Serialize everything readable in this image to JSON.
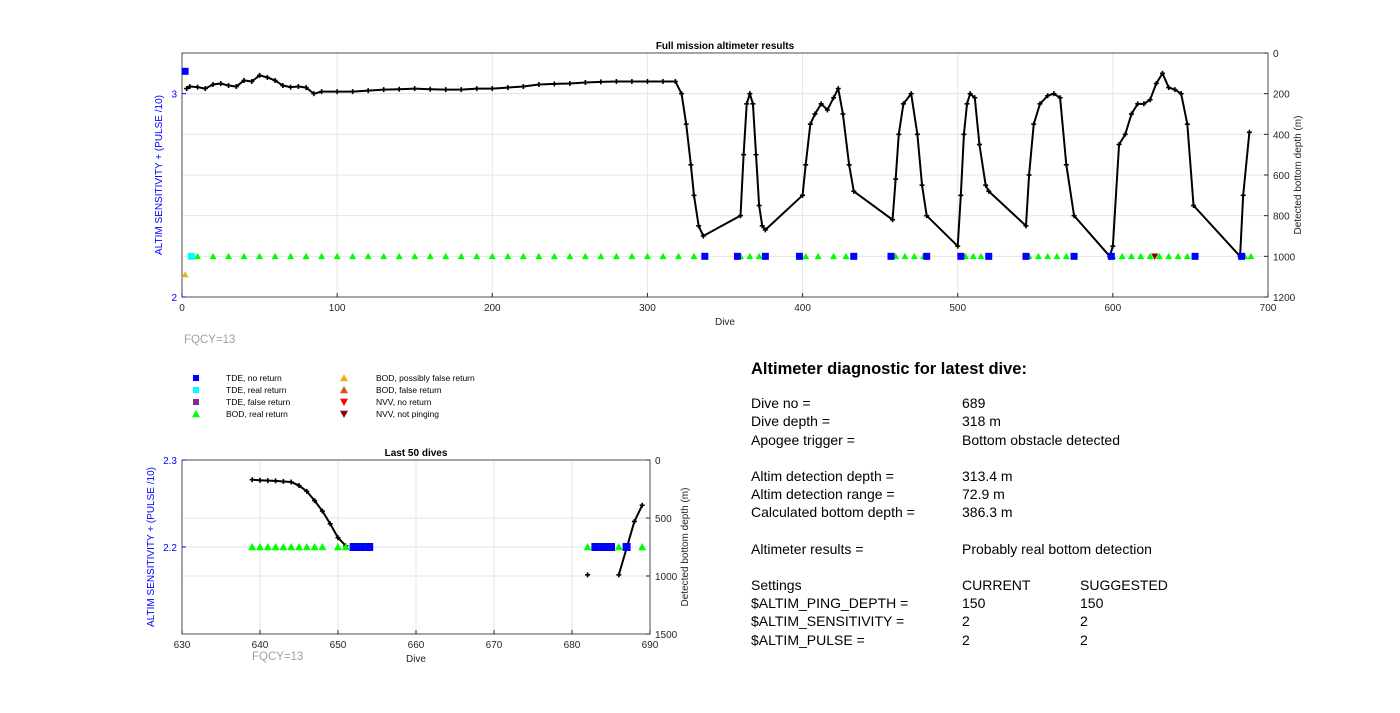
{
  "top": {
    "title": "Full mission altimeter results",
    "xlabel": "Dive",
    "ylabel_left": "ALTIM SENSITIVITY + (PULSE /10)",
    "ylabel_right": "Detected bottom depth (m)",
    "xticks": [
      "0",
      "100",
      "200",
      "300",
      "400",
      "500",
      "600",
      "700"
    ],
    "yticks_left": [
      "2",
      "3"
    ],
    "yticks_right": [
      "0",
      "200",
      "400",
      "600",
      "800",
      "1000",
      "1200"
    ],
    "note": "FQCY=13"
  },
  "legend": {
    "items": [
      {
        "label": "TDE, no return",
        "marker": "square",
        "color": "#0000ff"
      },
      {
        "label": "TDE, real return",
        "marker": "square",
        "color": "#00ffff"
      },
      {
        "label": "TDE, false return",
        "marker": "square",
        "color": "#7e2f8e"
      },
      {
        "label": "BOD, real return",
        "marker": "triangle-up",
        "color": "#00ff00"
      },
      {
        "label": "BOD, possibly false return",
        "marker": "triangle-up",
        "color": "#edb120"
      },
      {
        "label": "BOD, false return",
        "marker": "triangle-up",
        "color": "#d95319"
      },
      {
        "label": "NVV, no return",
        "marker": "triangle-down",
        "color": "#ff0000"
      },
      {
        "label": "NVV, not pinging",
        "marker": "triangle-down",
        "color": "#8b0000"
      }
    ]
  },
  "bottom": {
    "title": "Last 50 dives",
    "xlabel": "Dive",
    "ylabel_left": "ALTIM SENSITIVITY + (PULSE /10)",
    "ylabel_right": "Detected bottom depth (m)",
    "xticks": [
      "630",
      "640",
      "650",
      "660",
      "670",
      "680",
      "690"
    ],
    "yticks_left": [
      "2.2",
      "2.3"
    ],
    "yticks_right": [
      "0",
      "500",
      "1000",
      "1500"
    ],
    "note": "FQCY=13"
  },
  "diagnostic": {
    "title": "Altimeter diagnostic for latest dive:",
    "rows": [
      {
        "label": "Dive no =",
        "value": "689"
      },
      {
        "label": "Dive depth =",
        "value": "318 m"
      },
      {
        "label": "Apogee trigger =",
        "value": "Bottom obstacle detected"
      },
      {
        "label": "Altim detection depth =",
        "value": "313.4 m"
      },
      {
        "label": "Altim detection range =",
        "value": "72.9 m"
      },
      {
        "label": "Calculated bottom depth =",
        "value": "386.3 m"
      },
      {
        "label": "Altimeter results =",
        "value": "Probably real bottom detection"
      }
    ],
    "settings": {
      "header": {
        "label": "Settings",
        "current": "CURRENT",
        "suggested": "SUGGESTED"
      },
      "rows": [
        {
          "label": "$ALTIM_PING_DEPTH =",
          "current": "150",
          "suggested": "150"
        },
        {
          "label": "$ALTIM_SENSITIVITY =",
          "current": "2",
          "suggested": "2"
        },
        {
          "label": "$ALTIM_PULSE =",
          "current": "2",
          "suggested": "2"
        }
      ]
    }
  },
  "colors": {
    "axis_left": "#0000ff",
    "grid": "#e6e6e6",
    "refline": "#dde3ff",
    "note": "#a0a0a0"
  },
  "chart_data": [
    {
      "type": "scatter",
      "title": "Full mission altimeter results",
      "xlabel": "Dive",
      "ylabel": "ALTIM SENSITIVITY + (PULSE /10)",
      "y2label": "Detected bottom depth (m)",
      "xlim": [
        0,
        700
      ],
      "ylim": [
        2,
        3.2
      ],
      "y2lim": [
        0,
        1200
      ],
      "y2_reversed": true,
      "grid": true,
      "series": [
        {
          "name": "Detected bottom depth",
          "axis": "right",
          "style": "line-with-markers",
          "color": "#000000",
          "x": [
            3,
            5,
            10,
            15,
            20,
            25,
            30,
            35,
            40,
            45,
            50,
            55,
            60,
            65,
            70,
            75,
            80,
            85,
            90,
            100,
            110,
            120,
            130,
            140,
            150,
            160,
            170,
            180,
            190,
            200,
            210,
            220,
            230,
            240,
            250,
            260,
            270,
            280,
            290,
            300,
            310,
            318,
            322,
            325,
            328,
            330,
            333,
            336,
            360,
            362,
            364,
            366,
            368,
            370,
            372,
            374,
            376,
            400,
            402,
            405,
            408,
            412,
            416,
            420,
            423,
            426,
            430,
            433,
            458,
            460,
            462,
            465,
            470,
            474,
            477,
            480,
            500,
            502,
            504,
            506,
            508,
            511,
            514,
            518,
            520,
            544,
            546,
            549,
            553,
            558,
            562,
            566,
            570,
            575,
            598,
            600,
            604,
            608,
            612,
            616,
            620,
            624,
            628,
            632,
            636,
            640,
            644,
            648,
            652,
            682,
            684,
            688
          ],
          "y": [
            175,
            165,
            168,
            175,
            155,
            150,
            160,
            165,
            135,
            140,
            110,
            120,
            135,
            160,
            168,
            165,
            170,
            200,
            190,
            190,
            190,
            185,
            180,
            178,
            175,
            178,
            180,
            180,
            175,
            175,
            170,
            165,
            155,
            152,
            150,
            145,
            142,
            140,
            140,
            140,
            140,
            140,
            200,
            350,
            550,
            700,
            850,
            900,
            800,
            500,
            250,
            200,
            250,
            500,
            750,
            850,
            870,
            700,
            550,
            350,
            300,
            250,
            280,
            220,
            175,
            300,
            550,
            680,
            820,
            620,
            400,
            250,
            200,
            400,
            650,
            800,
            950,
            700,
            400,
            250,
            200,
            220,
            450,
            650,
            680,
            850,
            600,
            350,
            250,
            210,
            200,
            220,
            550,
            800,
            1000,
            950,
            450,
            400,
            300,
            250,
            250,
            230,
            150,
            100,
            170,
            180,
            200,
            350,
            750,
            1000,
            700,
            390
          ]
        },
        {
          "name": "BOD, real return",
          "axis": "left",
          "marker": "triangle-up",
          "color": "#00ff00",
          "x": [
            10,
            20,
            30,
            40,
            50,
            60,
            70,
            80,
            90,
            100,
            110,
            120,
            130,
            140,
            150,
            160,
            170,
            180,
            190,
            200,
            210,
            220,
            230,
            240,
            250,
            260,
            270,
            280,
            290,
            300,
            310,
            320,
            330,
            360,
            366,
            372,
            402,
            410,
            420,
            428,
            460,
            466,
            472,
            478,
            505,
            510,
            515,
            546,
            552,
            558,
            564,
            570,
            600,
            606,
            612,
            618,
            624,
            630,
            636,
            642,
            648,
            685,
            689
          ],
          "y": [
            2.2,
            2.2,
            2.2,
            2.2,
            2.2,
            2.2,
            2.2,
            2.2,
            2.2,
            2.2,
            2.2,
            2.2,
            2.2,
            2.2,
            2.2,
            2.2,
            2.2,
            2.2,
            2.2,
            2.2,
            2.2,
            2.2,
            2.2,
            2.2,
            2.2,
            2.2,
            2.2,
            2.2,
            2.2,
            2.2,
            2.2,
            2.2,
            2.2,
            2.2,
            2.2,
            2.2,
            2.2,
            2.2,
            2.2,
            2.2,
            2.2,
            2.2,
            2.2,
            2.2,
            2.2,
            2.2,
            2.2,
            2.2,
            2.2,
            2.2,
            2.2,
            2.2,
            2.2,
            2.2,
            2.2,
            2.2,
            2.2,
            2.2,
            2.2,
            2.2,
            2.2,
            2.2,
            2.2
          ]
        },
        {
          "name": "TDE, no return",
          "axis": "left",
          "marker": "square",
          "color": "#0000ff",
          "x": [
            2,
            337,
            358,
            376,
            398,
            433,
            457,
            480,
            502,
            520,
            544,
            575,
            599,
            653,
            683
          ],
          "y": [
            3.11,
            2.2,
            2.2,
            2.2,
            2.2,
            2.2,
            2.2,
            2.2,
            2.2,
            2.2,
            2.2,
            2.2,
            2.2,
            2.2,
            2.2
          ]
        },
        {
          "name": "TDE, real return",
          "axis": "left",
          "marker": "square",
          "color": "#00ffff",
          "x": [
            6
          ],
          "y": [
            2.2
          ]
        },
        {
          "name": "BOD, possibly false return",
          "axis": "left",
          "marker": "triangle-up",
          "color": "#edb120",
          "x": [
            2
          ],
          "y": [
            2.11
          ]
        },
        {
          "name": "NVV, not pinging",
          "axis": "left",
          "marker": "triangle-down",
          "color": "#8b0000",
          "x": [
            627
          ],
          "y": [
            2.2
          ]
        }
      ]
    },
    {
      "type": "scatter",
      "title": "Last 50 dives",
      "xlabel": "Dive",
      "ylabel": "ALTIM SENSITIVITY + (PULSE /10)",
      "y2label": "Detected bottom depth (m)",
      "xlim": [
        630,
        690
      ],
      "ylim": [
        2.1,
        2.3
      ],
      "y2lim": [
        0,
        1500
      ],
      "y2_reversed": true,
      "grid": true,
      "series": [
        {
          "name": "Detected bottom depth",
          "axis": "right",
          "style": "line-with-markers",
          "color": "#000000",
          "x": [
            639,
            640,
            641,
            642,
            643,
            644,
            645,
            646,
            647,
            648,
            649,
            650,
            651
          ],
          "y": [
            170,
            175,
            178,
            180,
            185,
            190,
            220,
            270,
            350,
            440,
            550,
            670,
            740
          ]
        },
        {
          "name": "Detected bottom depth",
          "axis": "right",
          "style": "line-with-markers",
          "color": "#000000",
          "x": [
            682
          ],
          "y": [
            990
          ]
        },
        {
          "name": "Detected bottom depth",
          "axis": "right",
          "style": "line-with-markers",
          "color": "#000000",
          "x": [
            686,
            688,
            689
          ],
          "y": [
            990,
            530,
            390
          ]
        },
        {
          "name": "BOD, real return",
          "axis": "left",
          "marker": "triangle-up",
          "color": "#00ff00",
          "x": [
            639,
            640,
            641,
            642,
            643,
            644,
            645,
            646,
            647,
            648,
            650,
            651,
            682,
            686,
            689
          ],
          "y": [
            2.2,
            2.2,
            2.2,
            2.2,
            2.2,
            2.2,
            2.2,
            2.2,
            2.2,
            2.2,
            2.2,
            2.2,
            2.2,
            2.2,
            2.2
          ]
        },
        {
          "name": "TDE, no return",
          "axis": "left",
          "marker": "square",
          "color": "#0000ff",
          "x": [
            652,
            653,
            654,
            683,
            684,
            685,
            687
          ],
          "y": [
            2.2,
            2.2,
            2.2,
            2.2,
            2.2,
            2.2,
            2.2
          ]
        }
      ]
    }
  ]
}
